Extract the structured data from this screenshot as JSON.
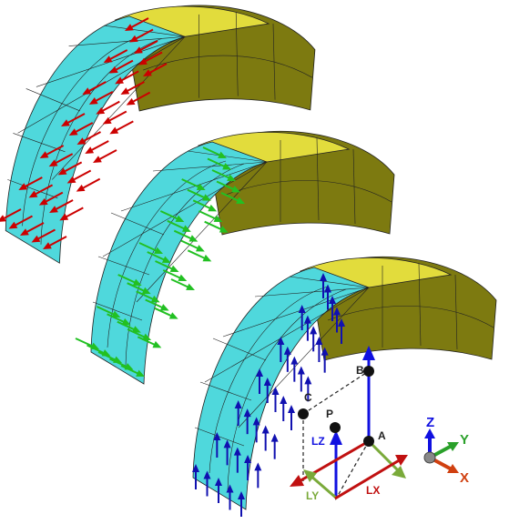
{
  "points": [
    "B",
    "C",
    "P",
    "A"
  ],
  "local_axes": [
    "LZ",
    "LY",
    "LX"
  ],
  "triad": [
    "Z",
    "Y",
    "X"
  ]
}
